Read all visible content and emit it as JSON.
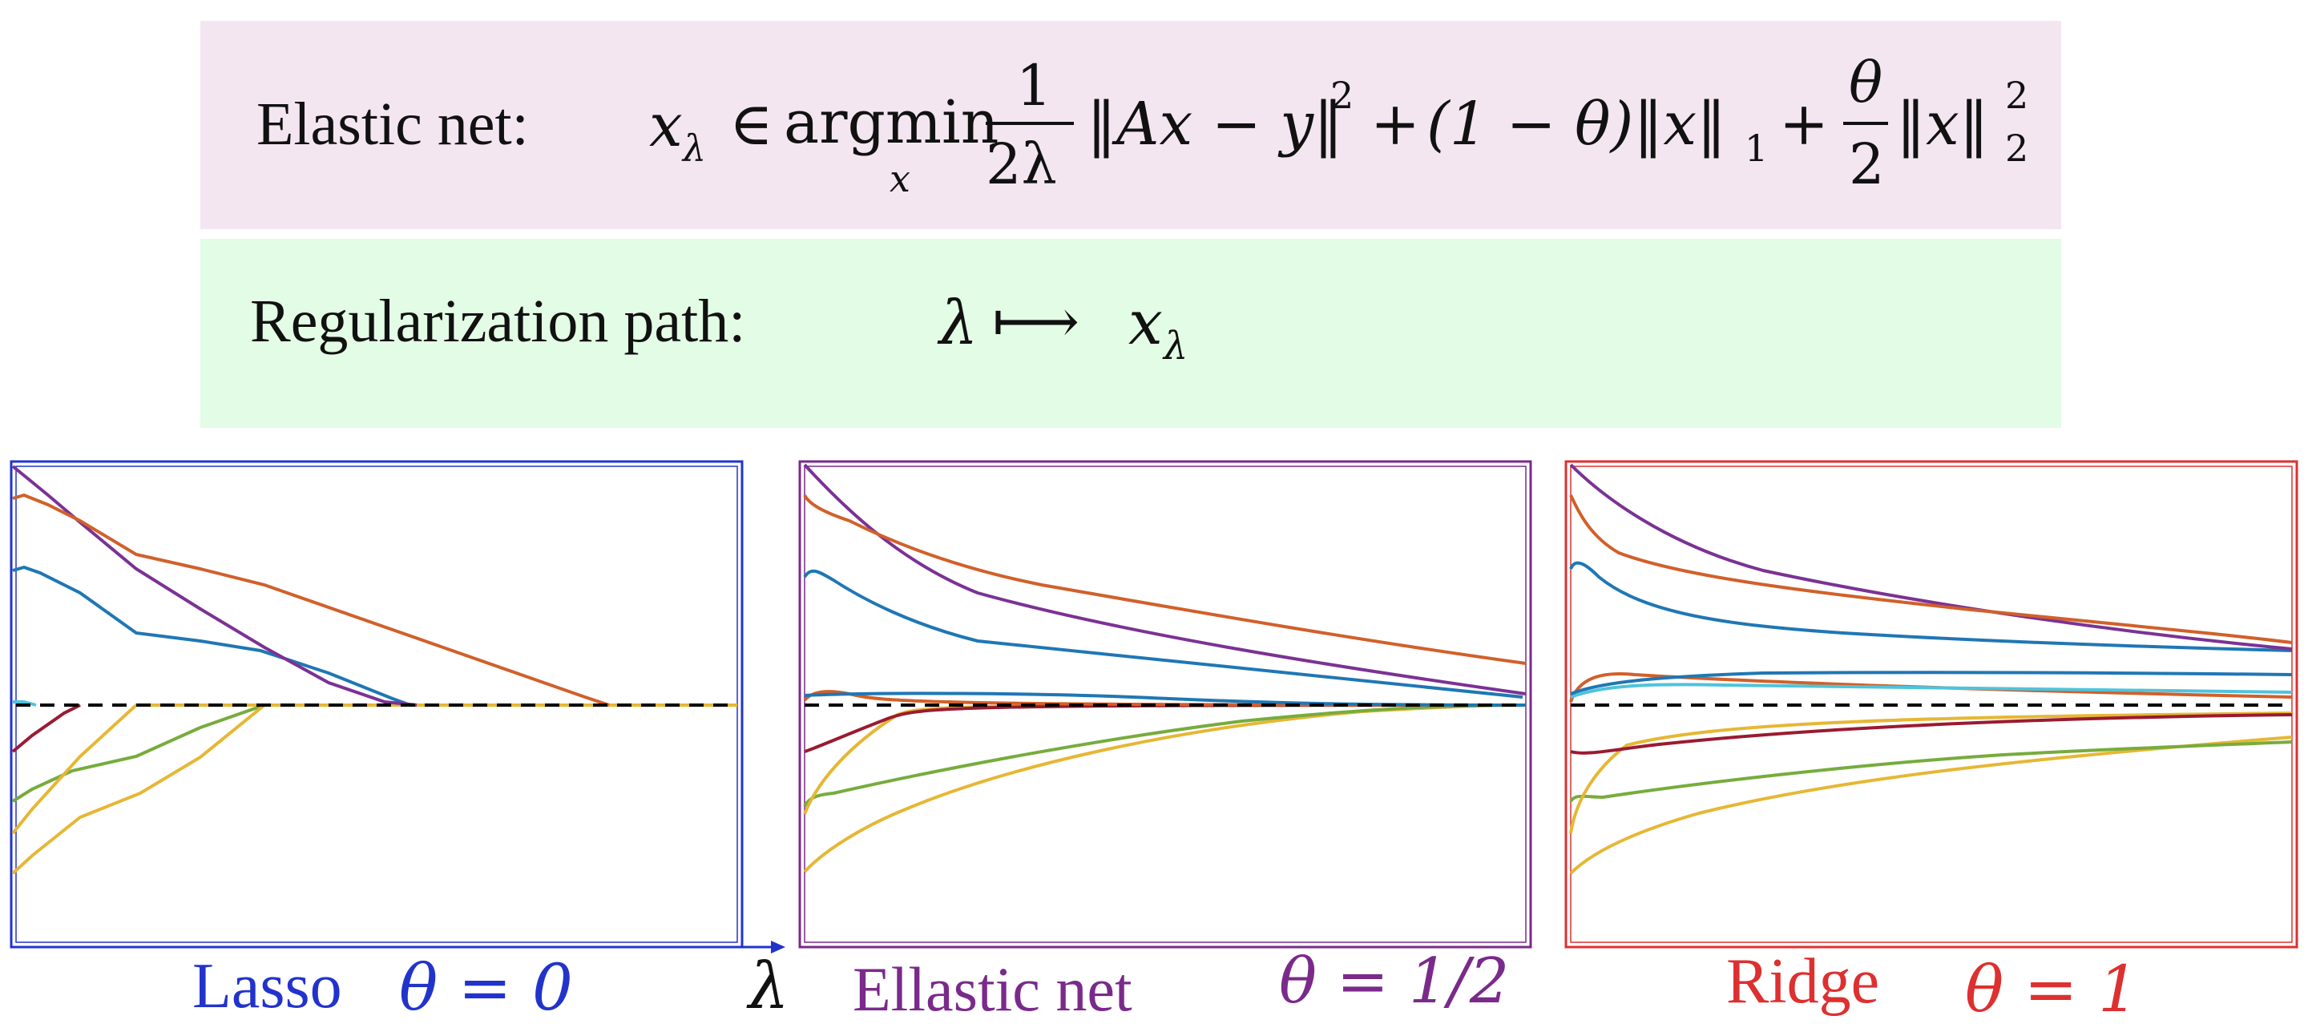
{
  "formula_box": {
    "label": "Elastic net:",
    "formula": {
      "x_lambda": "x",
      "sub_lambda": "λ",
      "elem": "∈",
      "argmin": "argmin",
      "argmin_sub": "x",
      "frac1_num": "1",
      "frac1_den": "2λ",
      "norm_term": "‖Ax − y‖",
      "sq": "2",
      "plus1": "+",
      "mid_term": "(1 − θ)‖x‖",
      "sub1": "1",
      "plus2": "+",
      "frac2_num": "θ",
      "frac2_den": "2",
      "last_term": "‖x‖",
      "last_sub": "2",
      "last_sup": "2"
    }
  },
  "path_box": {
    "label": "Regularization path:",
    "lambda": "λ",
    "arrow": "⟼",
    "x": "x",
    "sub_lambda": "λ"
  },
  "panels": [
    {
      "name": "Lasso",
      "theta": "θ = 0",
      "color": "#2233cc"
    },
    {
      "name": "Ellastic net",
      "theta": "θ = 1/2",
      "color": "#7a2a8a"
    },
    {
      "name": "Ridge",
      "theta": "θ = 1",
      "color": "#dd3030"
    }
  ],
  "axis_symbol": "λ",
  "series_colors": {
    "purple": "#7b3294",
    "orange": "#d1602a",
    "blue": "#1f77b4",
    "light_blue": "#4fc3dc",
    "dark_red": "#9a1b30",
    "green": "#77ac3c",
    "yellow": "#e6b734",
    "zero_line": "#000000"
  }
}
